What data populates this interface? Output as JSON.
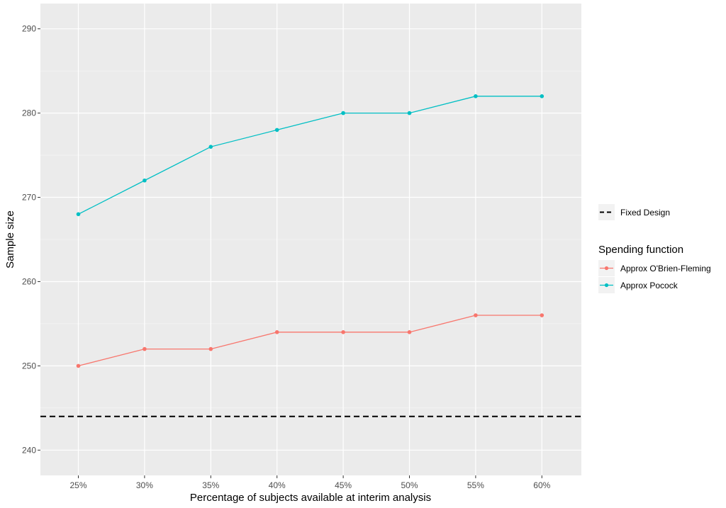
{
  "chart_data": {
    "type": "line",
    "xlabel": "Percentage of subjects available at interim analysis",
    "ylabel": "Sample size",
    "categories": [
      "25%",
      "30%",
      "35%",
      "40%",
      "45%",
      "50%",
      "55%",
      "60%"
    ],
    "ylim": [
      237,
      293
    ],
    "yticks": [
      240,
      250,
      260,
      270,
      280,
      290
    ],
    "grid": true,
    "legend_placement": "right",
    "series": [
      {
        "name": "Approx O'Brien-Fleming",
        "color": "#F8766D",
        "values": [
          250,
          252,
          252,
          254,
          254,
          254,
          256,
          256
        ]
      },
      {
        "name": "Approx Pocock",
        "color": "#00BFC4",
        "values": [
          268,
          272,
          276,
          278,
          280,
          280,
          282,
          282
        ]
      }
    ],
    "reference_lines": [
      {
        "name": "Fixed Design",
        "value": 244,
        "color": "#000000",
        "style": "dashed"
      }
    ],
    "legend": {
      "reference_label": "Fixed Design",
      "title": "Spending function"
    }
  }
}
